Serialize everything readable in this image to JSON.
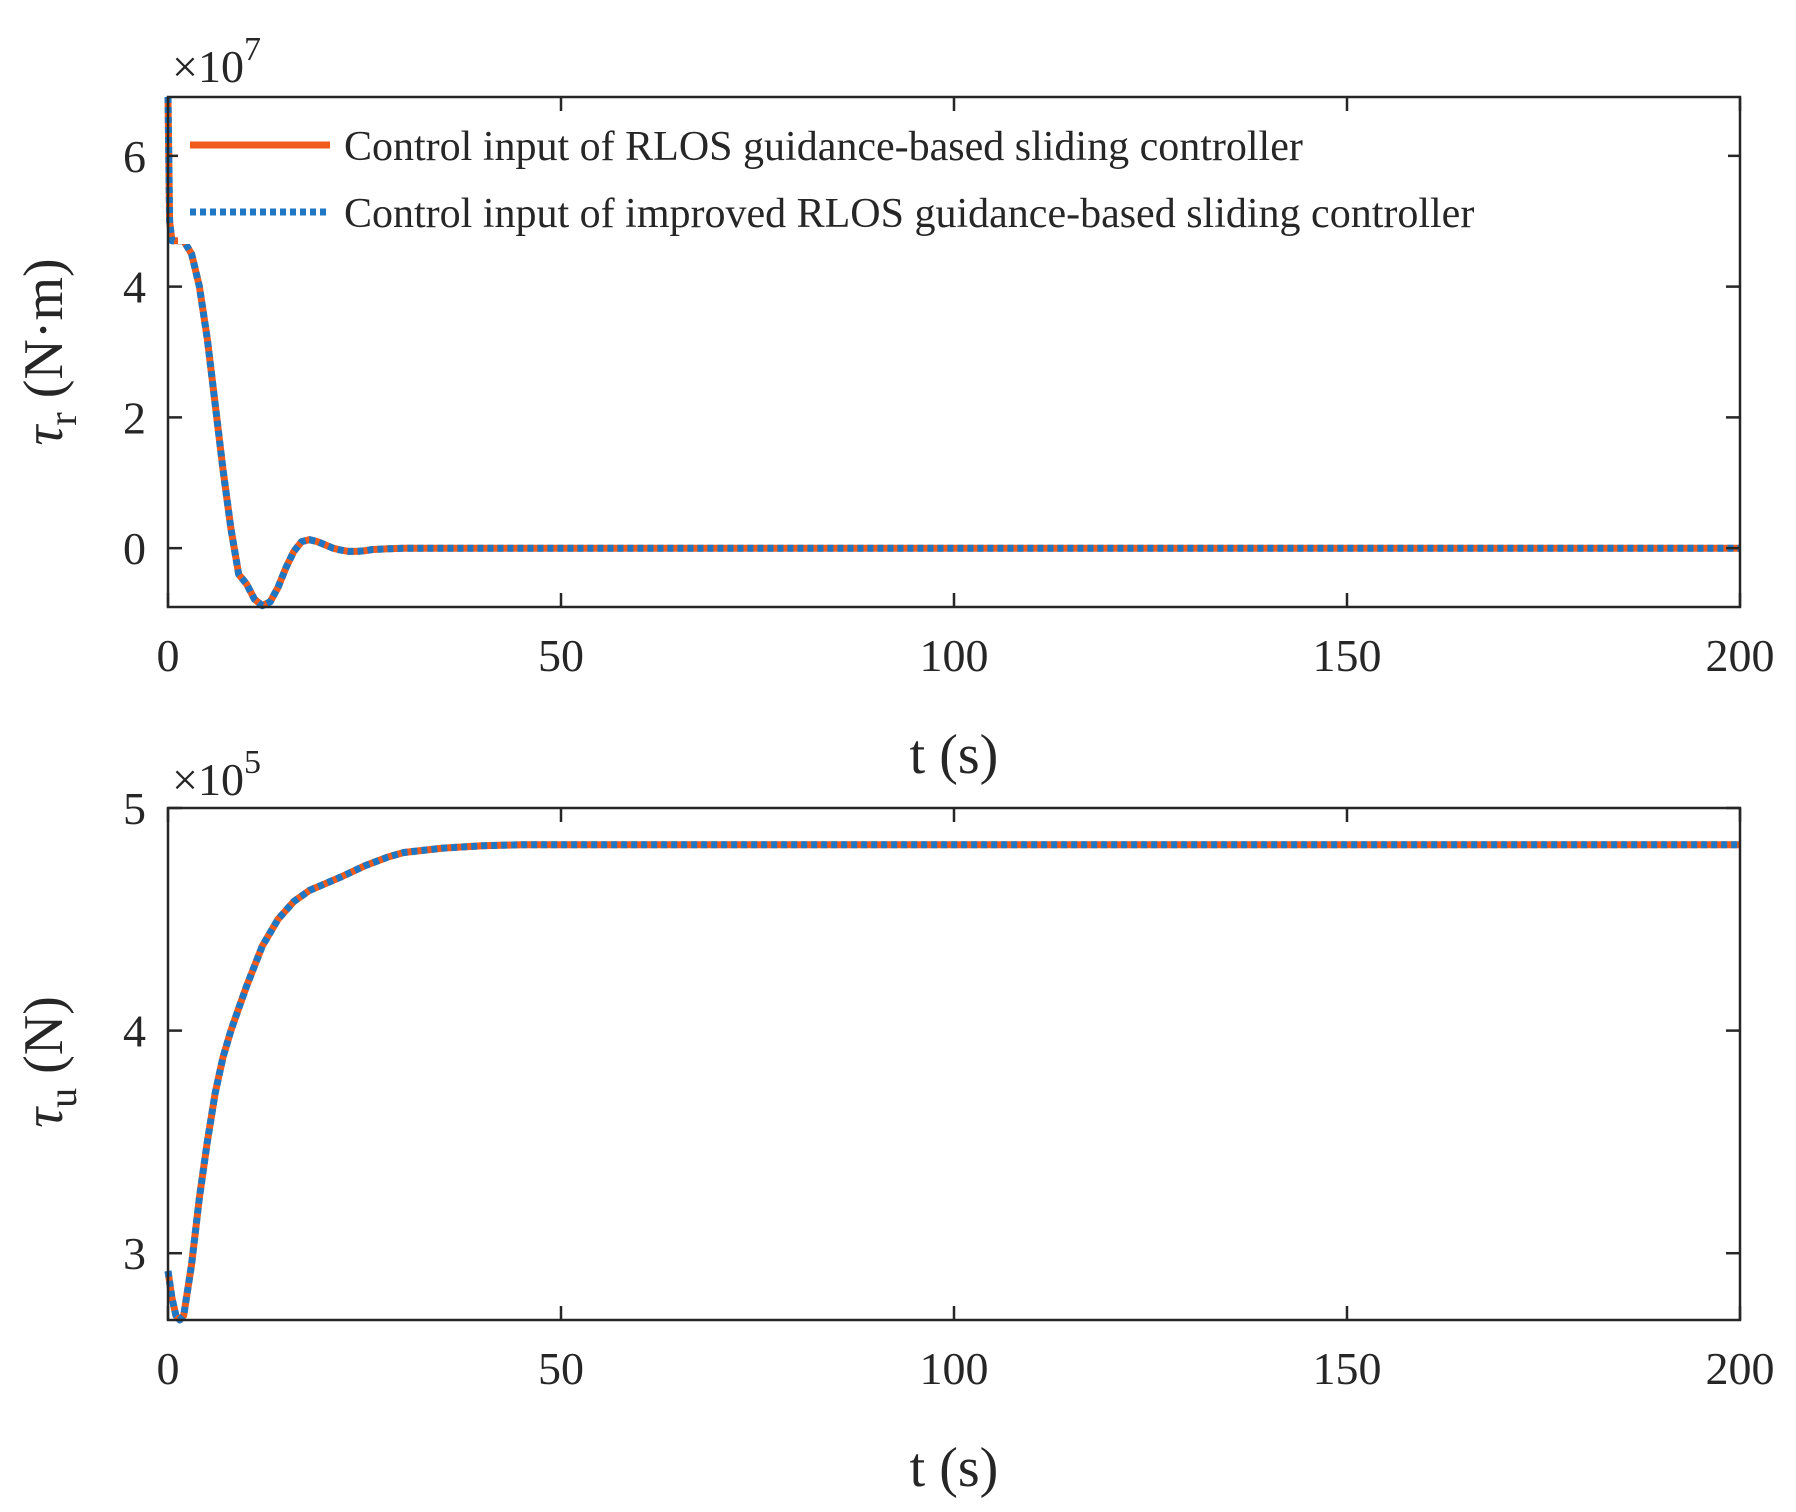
{
  "chart_data": [
    {
      "type": "line",
      "xlabel": "t (s)",
      "ylabel": "τr (N·m)",
      "ylabel_symbol": "τ",
      "ylabel_sub": "r",
      "ylabel_unit": "(N·m)",
      "exponent_label": "×10",
      "exponent_power": "7",
      "xlim": [
        0,
        200
      ],
      "ylim": [
        -0.9,
        6.9
      ],
      "xticks": [
        0,
        50,
        100,
        150,
        200
      ],
      "xtick_labels": [
        "0",
        "50",
        "100",
        "150",
        "200"
      ],
      "yticks": [
        0,
        2,
        4,
        6
      ],
      "ytick_labels": [
        "0",
        "2",
        "4",
        "6"
      ],
      "legend_position": "top-left",
      "grid": false,
      "series": [
        {
          "name": "Control input of RLOS guidance-based sliding controller",
          "color": "#f05a1a",
          "style": "solid",
          "x": [
            0,
            0.2,
            0.5,
            1,
            2,
            3,
            4,
            5,
            6,
            7,
            8,
            9,
            10,
            11,
            12,
            13,
            14,
            15,
            16,
            17,
            18,
            19,
            20,
            21,
            22,
            23,
            24,
            25,
            26,
            28,
            30,
            32,
            35,
            40,
            50,
            60,
            80,
            100,
            120,
            150,
            175,
            200
          ],
          "y": [
            6.9,
            5.0,
            4.7,
            4.7,
            4.7,
            4.5,
            4.0,
            3.2,
            2.2,
            1.2,
            0.3,
            -0.4,
            -0.55,
            -0.78,
            -0.88,
            -0.82,
            -0.6,
            -0.3,
            -0.05,
            0.1,
            0.13,
            0.1,
            0.05,
            0.0,
            -0.03,
            -0.05,
            -0.05,
            -0.04,
            -0.02,
            -0.01,
            0.0,
            0.0,
            0.0,
            0.0,
            0.0,
            0.0,
            0.0,
            0.0,
            0.0,
            0.0,
            0.0,
            0.0
          ]
        },
        {
          "name": "Control input of improved RLOS guidance-based sliding controller",
          "color": "#1f77c4",
          "style": "dotted",
          "x": [
            0,
            0.2,
            0.5,
            1,
            2,
            3,
            4,
            5,
            6,
            7,
            8,
            9,
            10,
            11,
            12,
            13,
            14,
            15,
            16,
            17,
            18,
            19,
            20,
            21,
            22,
            23,
            24,
            25,
            26,
            28,
            30,
            32,
            35,
            40,
            50,
            60,
            80,
            100,
            120,
            150,
            175,
            200
          ],
          "y": [
            6.9,
            5.0,
            4.7,
            4.7,
            4.7,
            4.5,
            4.0,
            3.2,
            2.2,
            1.2,
            0.3,
            -0.4,
            -0.55,
            -0.78,
            -0.88,
            -0.82,
            -0.6,
            -0.3,
            -0.05,
            0.1,
            0.13,
            0.1,
            0.05,
            0.0,
            -0.03,
            -0.05,
            -0.05,
            -0.04,
            -0.02,
            -0.01,
            0.0,
            0.0,
            0.0,
            0.0,
            0.0,
            0.0,
            0.0,
            0.0,
            0.0,
            0.0,
            0.0,
            0.0
          ]
        }
      ]
    },
    {
      "type": "line",
      "xlabel": "t (s)",
      "ylabel": "τu (N)",
      "ylabel_symbol": "τ",
      "ylabel_sub": "u",
      "ylabel_unit": "(N)",
      "exponent_label": "×10",
      "exponent_power": "5",
      "xlim": [
        0,
        200
      ],
      "ylim": [
        2.7,
        5.0
      ],
      "xticks": [
        0,
        50,
        100,
        150,
        200
      ],
      "xtick_labels": [
        "0",
        "50",
        "100",
        "150",
        "200"
      ],
      "yticks": [
        3,
        4,
        5
      ],
      "ytick_labels": [
        "3",
        "4",
        "5"
      ],
      "grid": false,
      "series": [
        {
          "name": "Control input of RLOS guidance-based sliding controller",
          "color": "#f05a1a",
          "style": "solid",
          "x": [
            0,
            0.5,
            1,
            1.5,
            2,
            3,
            4,
            5,
            6,
            7,
            8,
            9,
            10,
            12,
            14,
            16,
            18,
            20,
            22,
            25,
            28,
            30,
            35,
            40,
            45,
            50,
            60,
            80,
            100,
            120,
            150,
            200
          ],
          "y": [
            2.92,
            2.8,
            2.72,
            2.7,
            2.72,
            2.95,
            3.25,
            3.5,
            3.72,
            3.88,
            4.0,
            4.1,
            4.2,
            4.38,
            4.5,
            4.58,
            4.63,
            4.66,
            4.69,
            4.74,
            4.78,
            4.8,
            4.82,
            4.83,
            4.835,
            4.835,
            4.835,
            4.835,
            4.835,
            4.835,
            4.835,
            4.835
          ]
        },
        {
          "name": "Control input of improved RLOS guidance-based sliding controller",
          "color": "#1f77c4",
          "style": "dotted",
          "x": [
            0,
            0.5,
            1,
            1.5,
            2,
            3,
            4,
            5,
            6,
            7,
            8,
            9,
            10,
            12,
            14,
            16,
            18,
            20,
            22,
            25,
            28,
            30,
            35,
            40,
            45,
            50,
            60,
            80,
            100,
            120,
            150,
            200
          ],
          "y": [
            2.92,
            2.8,
            2.72,
            2.7,
            2.72,
            2.95,
            3.25,
            3.5,
            3.72,
            3.88,
            4.0,
            4.1,
            4.2,
            4.38,
            4.5,
            4.58,
            4.63,
            4.66,
            4.69,
            4.74,
            4.78,
            4.8,
            4.82,
            4.83,
            4.835,
            4.835,
            4.835,
            4.835,
            4.835,
            4.835,
            4.835,
            4.835
          ]
        }
      ]
    }
  ]
}
